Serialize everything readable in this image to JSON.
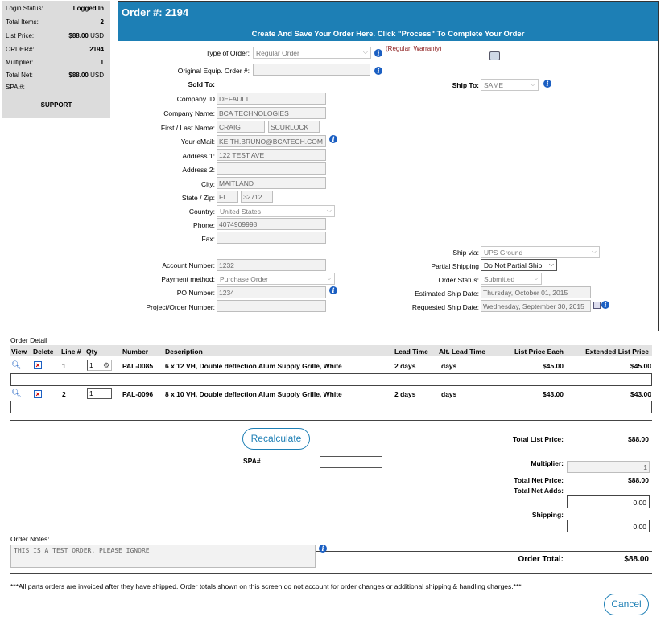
{
  "status_panel": {
    "rows": [
      {
        "label": "Login Status:",
        "value": "Logged In",
        "unit": ""
      },
      {
        "label": "Total Items:",
        "value": "2",
        "unit": ""
      },
      {
        "label": "List Price:",
        "value": "$88.00",
        "unit": " USD"
      },
      {
        "label": "ORDER#:",
        "value": "2194",
        "unit": ""
      },
      {
        "label": "Multiplier:",
        "value": "1",
        "unit": ""
      },
      {
        "label": "Total Net:",
        "value": "$88.00",
        "unit": " USD"
      },
      {
        "label": "SPA #:",
        "value": "",
        "unit": ""
      }
    ],
    "support": "SUPPORT"
  },
  "order": {
    "title": "Order #: 2194",
    "subtitle": "Create And Save Your Order Here. Click \"Process\" To Complete Your Order",
    "type_of_order_label": "Type of Order:",
    "type_of_order_value": "Regular Order",
    "type_hint": "(Regular, Warranty)",
    "orig_equip_label": "Original Equip. Order #:",
    "orig_equip_value": "",
    "sold_to_label": "Sold To:",
    "ship_to_label": "Ship To:",
    "ship_to_value": "SAME",
    "company_id_label": "Company ID",
    "company_id_value": "DEFAULT",
    "company_name_label": "Company Name:",
    "company_name_value": "BCA TECHNOLOGIES",
    "name_label": "First / Last Name:",
    "first_name": "CRAIG",
    "last_name": "SCURLOCK",
    "email_label": "Your eMail:",
    "email_value": "KEITH.BRUNO@BCATECH.COM",
    "address1_label": "Address 1:",
    "address1_value": "122 TEST AVE",
    "address2_label": "Address 2:",
    "address2_value": "",
    "city_label": "City:",
    "city_value": "MAITLAND",
    "state_zip_label": "State / Zip:",
    "state_value": "FL",
    "zip_value": "32712",
    "country_label": "Country:",
    "country_value": "United States",
    "phone_label": "Phone:",
    "phone_value": "4074909998",
    "fax_label": "Fax:",
    "fax_value": "",
    "account_label": "Account Number:",
    "account_value": "1232",
    "payment_label": "Payment method:",
    "payment_value": "Purchase Order",
    "po_label": "PO Number:",
    "po_value": "1234",
    "project_label": "Project/Order Number:",
    "project_value": "",
    "ship_via_label": "Ship via:",
    "ship_via_value": "UPS Ground",
    "partial_label": "Partial Shipping",
    "partial_value": "Do Not Partial Ship",
    "status_label": "Order Status:",
    "status_value": "Submitted",
    "est_ship_label": "Estimated Ship Date:",
    "est_ship_value": "Thursday, October 01, 2015",
    "req_ship_label": "Requested Ship Date:",
    "req_ship_value": "Wednesday, September 30, 2015"
  },
  "detail": {
    "title": "Order Detail",
    "headers": {
      "view": "View",
      "delete": "Delete",
      "line": "Line #",
      "qty": "Qty",
      "number": "Number",
      "description": "Description",
      "lead": "Lead Time",
      "alt_lead": "Alt. Lead Time",
      "list_each": "List Price Each",
      "ext_list": "Extended List Price"
    },
    "rows": [
      {
        "line": "1",
        "qty": "1",
        "number": "PAL-0085",
        "description": "6 x 12 VH, Double deflection Alum Supply Grille, White",
        "lead": "2 days",
        "alt_lead": "days",
        "list_each": "$45.00",
        "ext_list": "$45.00"
      },
      {
        "line": "2",
        "qty": "1",
        "number": "PAL-0096",
        "description": "8 x 10 VH, Double deflection Alum Supply Grille, White",
        "lead": "2 days",
        "alt_lead": "days",
        "list_each": "$43.00",
        "ext_list": "$43.00"
      }
    ]
  },
  "totals": {
    "recalculate": "Recalculate",
    "spa_label": "SPA#",
    "spa_value": "",
    "total_list_label": "Total List Price:",
    "total_list_value": "$88.00",
    "multiplier_label": "Multiplier:",
    "multiplier_value": "1",
    "total_net_label": "Total Net Price:",
    "total_net_value": "$88.00",
    "net_adds_label": "Total Net Adds:",
    "net_adds_value": "0.00",
    "shipping_label": "Shipping:",
    "shipping_value": "0.00",
    "order_total_label": "Order Total:",
    "order_total_value": "$88.00"
  },
  "notes": {
    "label": "Order Notes:",
    "value": "THIS IS A TEST ORDER. PLEASE IGNORE"
  },
  "footer": {
    "disclaimer": "***All parts orders are invoiced after they have shipped. Order totals shown on this screen do not account for order changes or additional shipping & handling charges.***",
    "cancel": "Cancel"
  },
  "colors": {
    "header_blue": "#1d7fb5",
    "hint_red": "#8b1a1a",
    "info_blue": "#1b5fc2"
  }
}
